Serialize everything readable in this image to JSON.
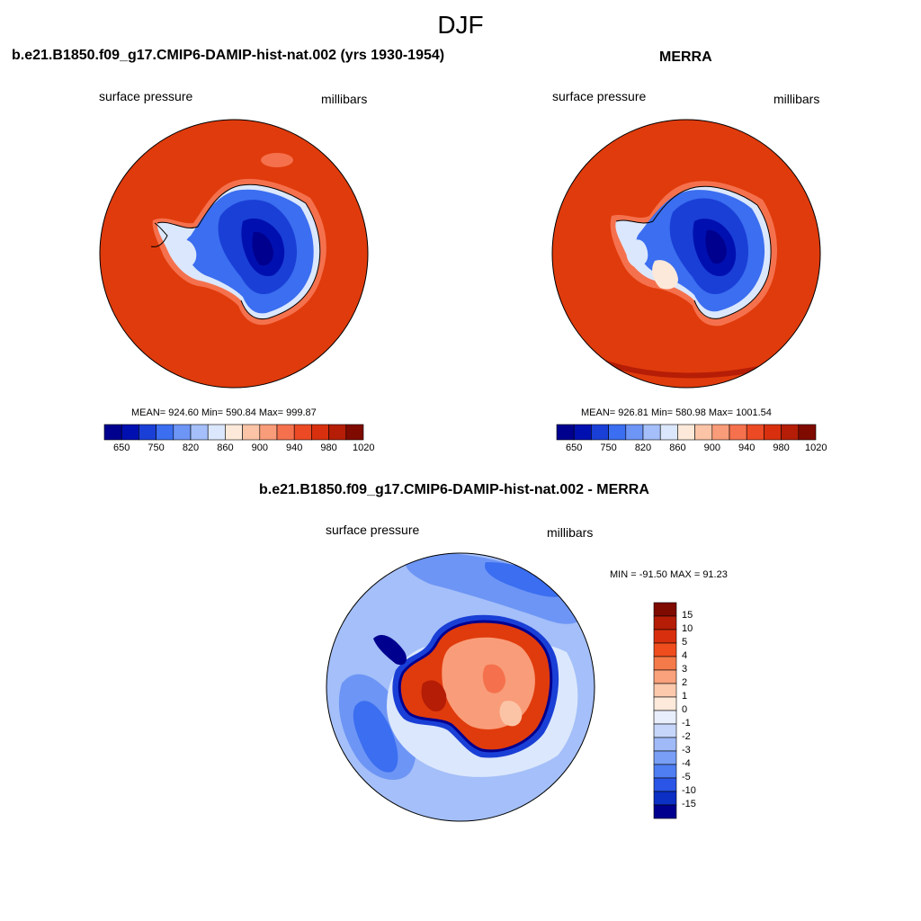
{
  "figure": {
    "title": "DJF"
  },
  "panels": [
    {
      "title": "b.e21.B1850.f09_g17.CMIP6-DAMIP-hist-nat.002 (yrs 1930-1954)",
      "left_label": "surface pressure",
      "right_label": "millibars",
      "stats": "MEAN= 924.60  Min= 590.84  Max= 999.87",
      "colorbar_ticks": [
        "650",
        "750",
        "820",
        "860",
        "900",
        "940",
        "980",
        "1020"
      ]
    },
    {
      "title": "MERRA",
      "left_label": "surface pressure",
      "right_label": "millibars",
      "stats": "MEAN= 926.81  Min= 580.98  Max= 1001.54",
      "colorbar_ticks": [
        "650",
        "750",
        "820",
        "860",
        "900",
        "940",
        "980",
        "1020"
      ]
    },
    {
      "title": "b.e21.B1850.f09_g17.CMIP6-DAMIP-hist-nat.002 - MERRA",
      "left_label": "surface pressure",
      "right_label": "millibars",
      "stats": "MIN = -91.50 MAX =  91.23",
      "colorbar_ticks": [
        "15",
        "10",
        "5",
        "4",
        "3",
        "2",
        "1",
        "0",
        "-1",
        "-2",
        "-3",
        "-4",
        "-5",
        "-10",
        "-15"
      ]
    }
  ],
  "colors": {
    "pressure_scale": [
      "#00008f",
      "#0010b0",
      "#1a3fd6",
      "#3b6ef0",
      "#6d95f5",
      "#a4bff9",
      "#dbe7fc",
      "#fde9d9",
      "#fbc4a7",
      "#f99c79",
      "#f5714d",
      "#ec4a24",
      "#d8300f",
      "#b51d06",
      "#7f0a00"
    ],
    "difference_scale": [
      "#7f0a00",
      "#b51d06",
      "#d8300f",
      "#f04d1e",
      "#f57a4a",
      "#f9a27c",
      "#fcc9ad",
      "#fdeadb",
      "#e8eefc",
      "#c6d6fa",
      "#9fbaf7",
      "#789ff5",
      "#4f7ef2",
      "#2a55e6",
      "#0c2fc4",
      "#00008f"
    ],
    "ocean_pressure": "#e03b0c",
    "diff_ocean": "#a4bff9"
  }
}
